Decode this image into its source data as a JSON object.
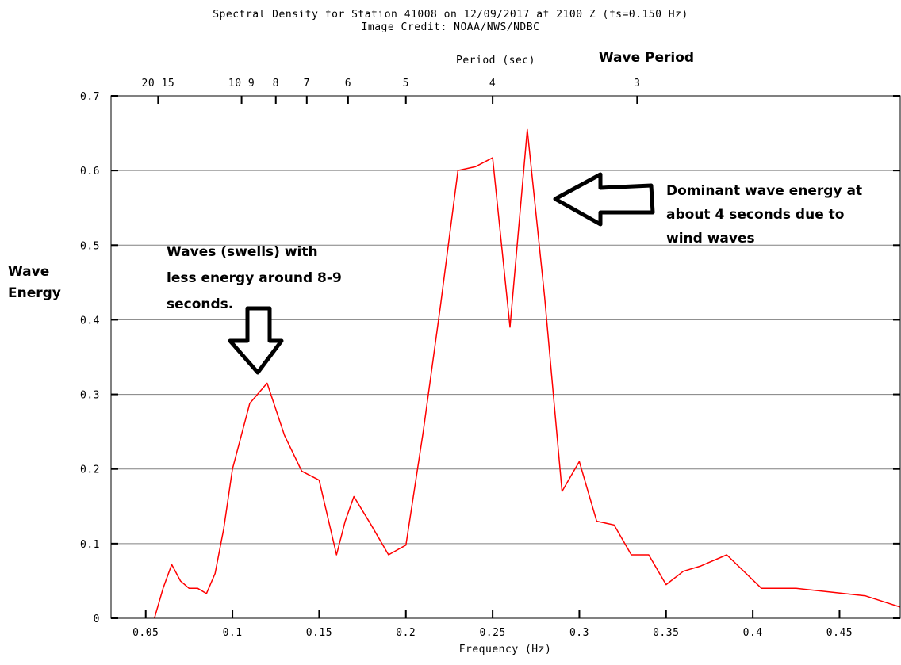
{
  "chart_data": {
    "type": "line",
    "title": "Spectral Density for Station 41008 on 12/09/2017 at 2100 Z (fs=0.150 Hz)",
    "subtitle": "Image Credit: NOAA/NWS/NDBC",
    "xlabel": "Frequency (Hz)",
    "top_axis_label": "Period (sec)",
    "xlim": [
      0.03,
      0.485
    ],
    "ylim": [
      0,
      0.7
    ],
    "grid": true,
    "x_ticks": [
      "0.05",
      "0.1",
      "0.15",
      "0.2",
      "0.25",
      "0.3",
      "0.35",
      "0.4",
      "0.45"
    ],
    "y_ticks": [
      "0",
      "0.1",
      "0.2",
      "0.3",
      "0.4",
      "0.5",
      "0.6",
      "0.7"
    ],
    "period_ticks": [
      {
        "label": "20 15",
        "period": 17.5
      },
      {
        "label": "10 9",
        "period": 9.5
      },
      {
        "label": "8",
        "period": 8
      },
      {
        "label": "7",
        "period": 7
      },
      {
        "label": "6",
        "period": 6
      },
      {
        "label": "5",
        "period": 5
      },
      {
        "label": "4",
        "period": 4
      },
      {
        "label": "3",
        "period": 3
      }
    ],
    "series": [
      {
        "color": "#ff0000",
        "x": [
          0.055,
          0.06,
          0.065,
          0.07,
          0.075,
          0.08,
          0.085,
          0.09,
          0.095,
          0.1,
          0.11,
          0.12,
          0.13,
          0.14,
          0.15,
          0.16,
          0.165,
          0.17,
          0.18,
          0.19,
          0.2,
          0.21,
          0.22,
          0.23,
          0.24,
          0.25,
          0.26,
          0.27,
          0.28,
          0.29,
          0.3,
          0.31,
          0.32,
          0.33,
          0.34,
          0.35,
          0.36,
          0.37,
          0.385,
          0.405,
          0.425,
          0.445,
          0.465,
          0.485
        ],
        "y": [
          0.0,
          0.04,
          0.072,
          0.05,
          0.04,
          0.04,
          0.033,
          0.06,
          0.12,
          0.2,
          0.288,
          0.315,
          0.245,
          0.197,
          0.185,
          0.085,
          0.13,
          0.163,
          0.125,
          0.085,
          0.098,
          0.25,
          0.42,
          0.6,
          0.605,
          0.617,
          0.39,
          0.655,
          0.43,
          0.17,
          0.21,
          0.13,
          0.125,
          0.085,
          0.085,
          0.045,
          0.063,
          0.07,
          0.085,
          0.04,
          0.04,
          0.035,
          0.03,
          0.015
        ]
      }
    ],
    "annotations": {
      "ylabel_line1": "Wave",
      "ylabel_line2": "Energy",
      "period_title": "Wave Period",
      "dominant": [
        "Dominant wave energy at",
        "about 4 seconds due to",
        "wind waves"
      ],
      "swell": [
        "Waves (swells) with",
        "less energy around 8-9",
        "seconds."
      ]
    }
  }
}
